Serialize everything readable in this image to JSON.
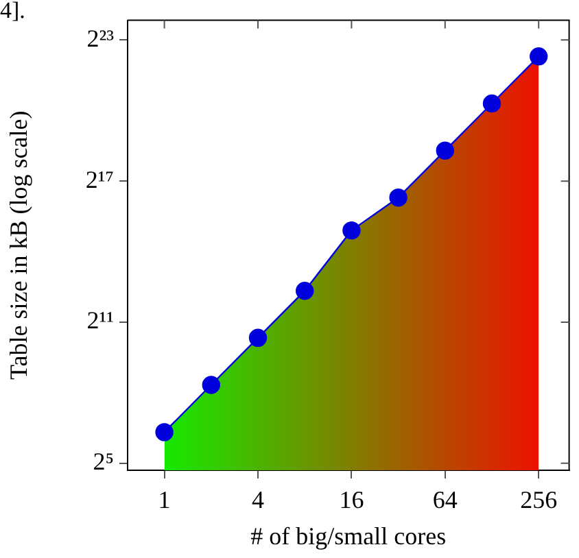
{
  "chart_data": {
    "type": "area",
    "xlabel": "# of big/small cores",
    "ylabel": "Table size in kB (log scale)",
    "annotations": [
      "4]."
    ],
    "x": [
      1,
      2,
      4,
      8,
      16,
      32,
      64,
      128,
      256
    ],
    "series": [
      {
        "color": "#0000dd",
        "values": [
          80,
          322,
          1290,
          5160,
          30600,
          80600,
          322000,
          1290000,
          5170000
        ]
      }
    ],
    "log": "xy",
    "marker": "circle",
    "legend": false,
    "grid": false,
    "xlim": [
      0.58,
      402
    ],
    "xticks": [
      1,
      4,
      16,
      64,
      256
    ],
    "ylim": [
      26,
      15000000
    ],
    "yticks": [
      {
        "value": 32,
        "label": "2⁵"
      },
      {
        "value": 2048,
        "label": "2¹¹"
      },
      {
        "value": 131072,
        "label": "2¹⁷"
      },
      {
        "value": 8388608,
        "label": "2²³"
      }
    ]
  }
}
